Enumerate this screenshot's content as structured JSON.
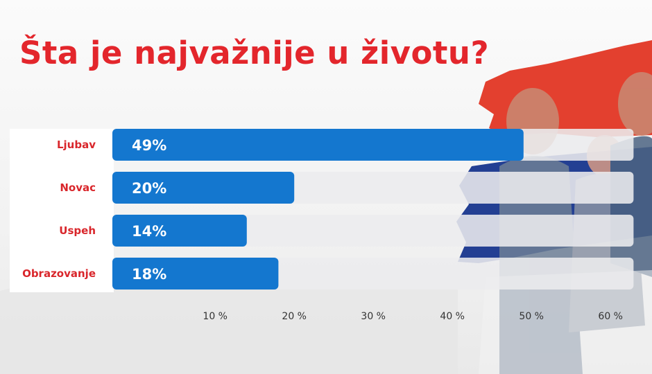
{
  "colors": {
    "title": "#e3262c",
    "bar": "#1477cf",
    "track": "#ececee",
    "label": "#d9262b",
    "flag_red": "#e3402f",
    "flag_blue": "#233f93"
  },
  "chart_data": {
    "type": "bar",
    "orientation": "horizontal",
    "title": "Šta je najvažnije u životu?",
    "categories": [
      "Ljubav",
      "Novac",
      "Uspeh",
      "Obrazovanje"
    ],
    "values": [
      49,
      20,
      14,
      18
    ],
    "value_labels": [
      "49%",
      "20%",
      "14%",
      "18%"
    ],
    "x_ticks": [
      10,
      20,
      30,
      40,
      50,
      60
    ],
    "x_tick_labels": [
      "10 %",
      "20 %",
      "30 %",
      "40 %",
      "50 %",
      "60 %"
    ],
    "xlim": [
      -3,
      63
    ],
    "grid": false,
    "legend": "none"
  }
}
